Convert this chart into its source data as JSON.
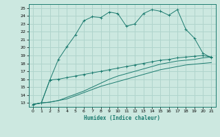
{
  "xlabel": "Humidex (Indice chaleur)",
  "bg_color": "#cce8e0",
  "grid_color": "#b0d4cc",
  "line_color": "#1a7a6e",
  "xlim": [
    -0.5,
    21.5
  ],
  "ylim": [
    12.5,
    25.5
  ],
  "xticks": [
    0,
    1,
    2,
    3,
    4,
    5,
    6,
    7,
    8,
    9,
    10,
    11,
    12,
    13,
    14,
    15,
    16,
    17,
    18,
    19,
    20,
    21
  ],
  "yticks": [
    13,
    14,
    15,
    16,
    17,
    18,
    19,
    20,
    21,
    22,
    23,
    24,
    25
  ],
  "line1_x": [
    0,
    1,
    2,
    3,
    4,
    5,
    6,
    7,
    8,
    9,
    10,
    11,
    12,
    13,
    14,
    15,
    16,
    17,
    18,
    19,
    20,
    21
  ],
  "line1_y": [
    12.8,
    13.0,
    15.9,
    18.5,
    20.1,
    21.6,
    23.4,
    23.9,
    23.8,
    24.5,
    24.3,
    22.7,
    23.0,
    24.3,
    24.8,
    24.6,
    24.1,
    24.8,
    22.3,
    21.2,
    19.3,
    18.7
  ],
  "line2_x": [
    0,
    1,
    2,
    3,
    4,
    5,
    6,
    7,
    8,
    9,
    10,
    11,
    12,
    13,
    14,
    15,
    16,
    17,
    18,
    19,
    20,
    21
  ],
  "line2_y": [
    12.8,
    13.0,
    15.9,
    16.0,
    16.2,
    16.4,
    16.6,
    16.8,
    17.0,
    17.2,
    17.4,
    17.6,
    17.8,
    18.0,
    18.2,
    18.4,
    18.5,
    18.7,
    18.8,
    18.9,
    19.0,
    18.8
  ],
  "line3_x": [
    0,
    1,
    2,
    3,
    4,
    5,
    6,
    7,
    8,
    9,
    10,
    11,
    12,
    13,
    14,
    15,
    16,
    17,
    18,
    19,
    20,
    21
  ],
  "line3_y": [
    12.8,
    13.0,
    13.1,
    13.3,
    13.7,
    14.1,
    14.5,
    15.0,
    15.5,
    16.0,
    16.4,
    16.7,
    17.0,
    17.3,
    17.6,
    17.9,
    18.1,
    18.3,
    18.4,
    18.5,
    18.7,
    18.8
  ],
  "line4_x": [
    0,
    1,
    2,
    3,
    4,
    5,
    6,
    7,
    8,
    9,
    10,
    11,
    12,
    13,
    14,
    15,
    16,
    17,
    18,
    19,
    20,
    21
  ],
  "line4_y": [
    12.8,
    13.0,
    13.1,
    13.3,
    13.5,
    13.9,
    14.3,
    14.7,
    15.1,
    15.4,
    15.7,
    16.0,
    16.3,
    16.6,
    16.9,
    17.2,
    17.4,
    17.6,
    17.8,
    17.9,
    18.0,
    18.1
  ]
}
